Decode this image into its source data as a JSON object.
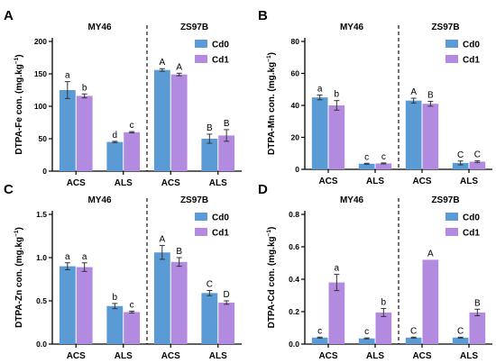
{
  "colors": {
    "cd0": "#5b9bd5",
    "cd1": "#b28ae0",
    "axis": "#000000",
    "divider": "#000000"
  },
  "legend": {
    "items": [
      {
        "key": "cd0",
        "label": "Cd0"
      },
      {
        "key": "cd1",
        "label": "Cd1"
      }
    ]
  },
  "chart_data": [
    {
      "type": "bar",
      "panel": "A",
      "ylabel": "DTPA-Fe con. (mg.kg",
      "ylabel_sup": "−1",
      "ylabel_close": ")",
      "ylim": [
        0,
        200
      ],
      "yticks": [
        0,
        50,
        100,
        150,
        200
      ],
      "ytick_labels": [
        "0",
        "50",
        "100",
        "150",
        "200"
      ],
      "groups": [
        "MY46",
        "ZS97B"
      ],
      "categories": [
        "ACS",
        "ALS",
        "ACS",
        "ALS"
      ],
      "series": [
        {
          "name": "Cd0",
          "values": [
            125,
            45,
            156,
            50
          ],
          "errors": [
            13,
            1,
            2,
            7
          ],
          "letters": [
            "a",
            "d",
            "A",
            "B"
          ]
        },
        {
          "name": "Cd1",
          "values": [
            116,
            60,
            149,
            55
          ],
          "errors": [
            3,
            1,
            2,
            9
          ],
          "letters": [
            "b",
            "c",
            "A",
            "B"
          ]
        }
      ],
      "legend_position": "top-right"
    },
    {
      "type": "bar",
      "panel": "B",
      "ylabel": "DTPA-Mn con. (mg.kg",
      "ylabel_sup": "−1",
      "ylabel_close": ")",
      "ylim": [
        0,
        80
      ],
      "yticks": [
        0,
        20,
        40,
        60,
        80
      ],
      "ytick_labels": [
        "0",
        "20",
        "40",
        "60",
        "80"
      ],
      "groups": [
        "MY46",
        "ZS97B"
      ],
      "categories": [
        "ACS",
        "ALS",
        "ACS",
        "ALS"
      ],
      "series": [
        {
          "name": "Cd0",
          "values": [
            45,
            3.5,
            43,
            4
          ],
          "errors": [
            1.5,
            0.3,
            1.5,
            1.2
          ],
          "letters": [
            "a",
            "c",
            "A",
            "C"
          ]
        },
        {
          "name": "Cd1",
          "values": [
            40,
            3.7,
            41,
            4.8
          ],
          "errors": [
            3,
            0.3,
            1.5,
            0.5
          ],
          "letters": [
            "b",
            "c",
            "B",
            "C"
          ]
        }
      ],
      "legend_position": "top-right"
    },
    {
      "type": "bar",
      "panel": "C",
      "ylabel": "DTPA-Zn con. (mg.kg",
      "ylabel_sup": "−1",
      "ylabel_close": ")",
      "ylim": [
        0,
        1.5
      ],
      "yticks": [
        0,
        0.5,
        1.0,
        1.5
      ],
      "ytick_labels": [
        "0.0",
        "0.5",
        "1.0",
        "1.5"
      ],
      "groups": [
        "MY46",
        "ZS97B"
      ],
      "categories": [
        "ACS",
        "ALS",
        "ACS",
        "ALS"
      ],
      "series": [
        {
          "name": "Cd0",
          "values": [
            0.9,
            0.44,
            1.06,
            0.59
          ],
          "errors": [
            0.04,
            0.03,
            0.08,
            0.03
          ],
          "letters": [
            "a",
            "b",
            "A",
            "C"
          ]
        },
        {
          "name": "Cd1",
          "values": [
            0.89,
            0.37,
            0.95,
            0.48
          ],
          "errors": [
            0.05,
            0.01,
            0.05,
            0.02
          ],
          "letters": [
            "a",
            "c",
            "B",
            "D"
          ]
        }
      ],
      "legend_position": "top-right"
    },
    {
      "type": "bar",
      "panel": "D",
      "ylabel": "DTPA-Cd con. (mg.kg",
      "ylabel_sup": "−1",
      "ylabel_close": ")",
      "ylim": [
        0,
        0.8
      ],
      "yticks": [
        0,
        0.2,
        0.4,
        0.6,
        0.8
      ],
      "ytick_labels": [
        "0.0",
        "0.2",
        "0.4",
        "0.6",
        "0.8"
      ],
      "groups": [
        "MY46",
        "ZS97B"
      ],
      "categories": [
        "ACS",
        "ALS",
        "ACS",
        "ALS"
      ],
      "series": [
        {
          "name": "Cd0",
          "values": [
            0.04,
            0.035,
            0.04,
            0.04
          ],
          "errors": [
            0.003,
            0.003,
            0.003,
            0.003
          ],
          "letters": [
            "c",
            "c",
            "C",
            "C"
          ]
        },
        {
          "name": "Cd1",
          "values": [
            0.38,
            0.195,
            0.52,
            0.195
          ],
          "errors": [
            0.05,
            0.025,
            0,
            0.02
          ],
          "letters": [
            "a",
            "b",
            "A",
            "B"
          ]
        }
      ],
      "legend_position": "top-right"
    }
  ]
}
